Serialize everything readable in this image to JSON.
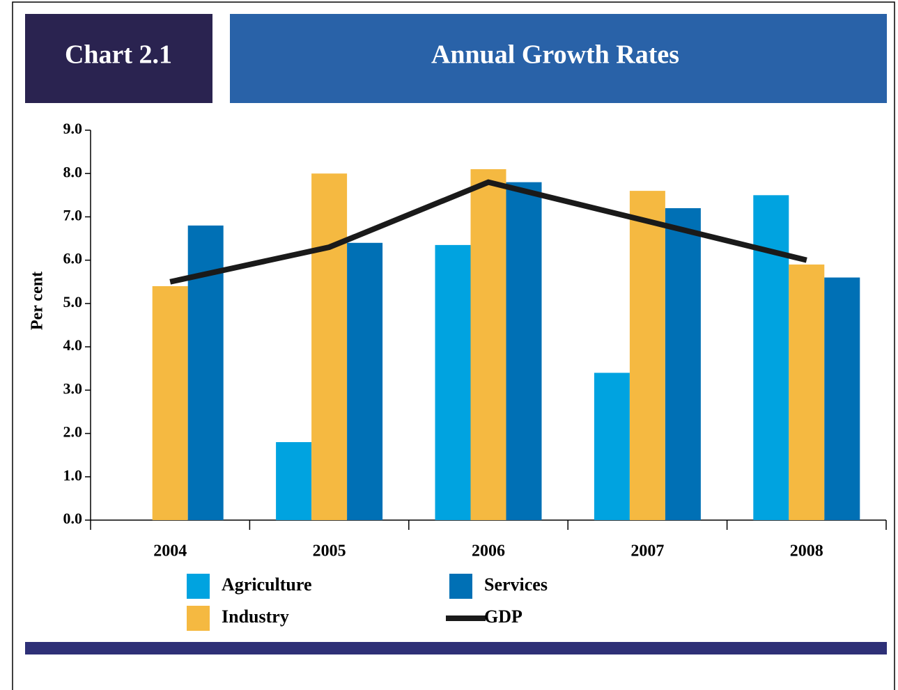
{
  "chart_data": {
    "type": "bar",
    "label": "Chart 2.1",
    "title": "Annual Growth Rates",
    "ylabel": "Per cent",
    "categories": [
      "2004",
      "2005",
      "2006",
      "2007",
      "2008"
    ],
    "series": [
      {
        "name": "Agriculture",
        "color": "#00a3e0",
        "values": [
          0,
          1.8,
          6.35,
          3.4,
          7.5
        ]
      },
      {
        "name": "Industry",
        "color": "#f5b941",
        "values": [
          5.4,
          8.0,
          8.1,
          7.6,
          5.9
        ]
      },
      {
        "name": "Services",
        "color": "#0070b5",
        "values": [
          6.8,
          6.4,
          7.8,
          7.2,
          5.6
        ]
      },
      {
        "name": "GDP",
        "color": "#1a1a1a",
        "type": "line",
        "values": [
          5.5,
          6.3,
          7.8,
          6.9,
          6.0
        ]
      }
    ],
    "ylim": [
      0,
      9
    ],
    "yticks": [
      {
        "value": 0,
        "label": "0.0"
      },
      {
        "value": 1,
        "label": "1.0"
      },
      {
        "value": 2,
        "label": "2.0"
      },
      {
        "value": 3,
        "label": "3.0"
      },
      {
        "value": 4,
        "label": "4.0"
      },
      {
        "value": 5,
        "label": "5.0"
      },
      {
        "value": 6,
        "label": "6.0"
      },
      {
        "value": 7,
        "label": "7.0"
      },
      {
        "value": 8,
        "label": "8.0"
      },
      {
        "value": 9,
        "label": "9.0"
      }
    ]
  }
}
